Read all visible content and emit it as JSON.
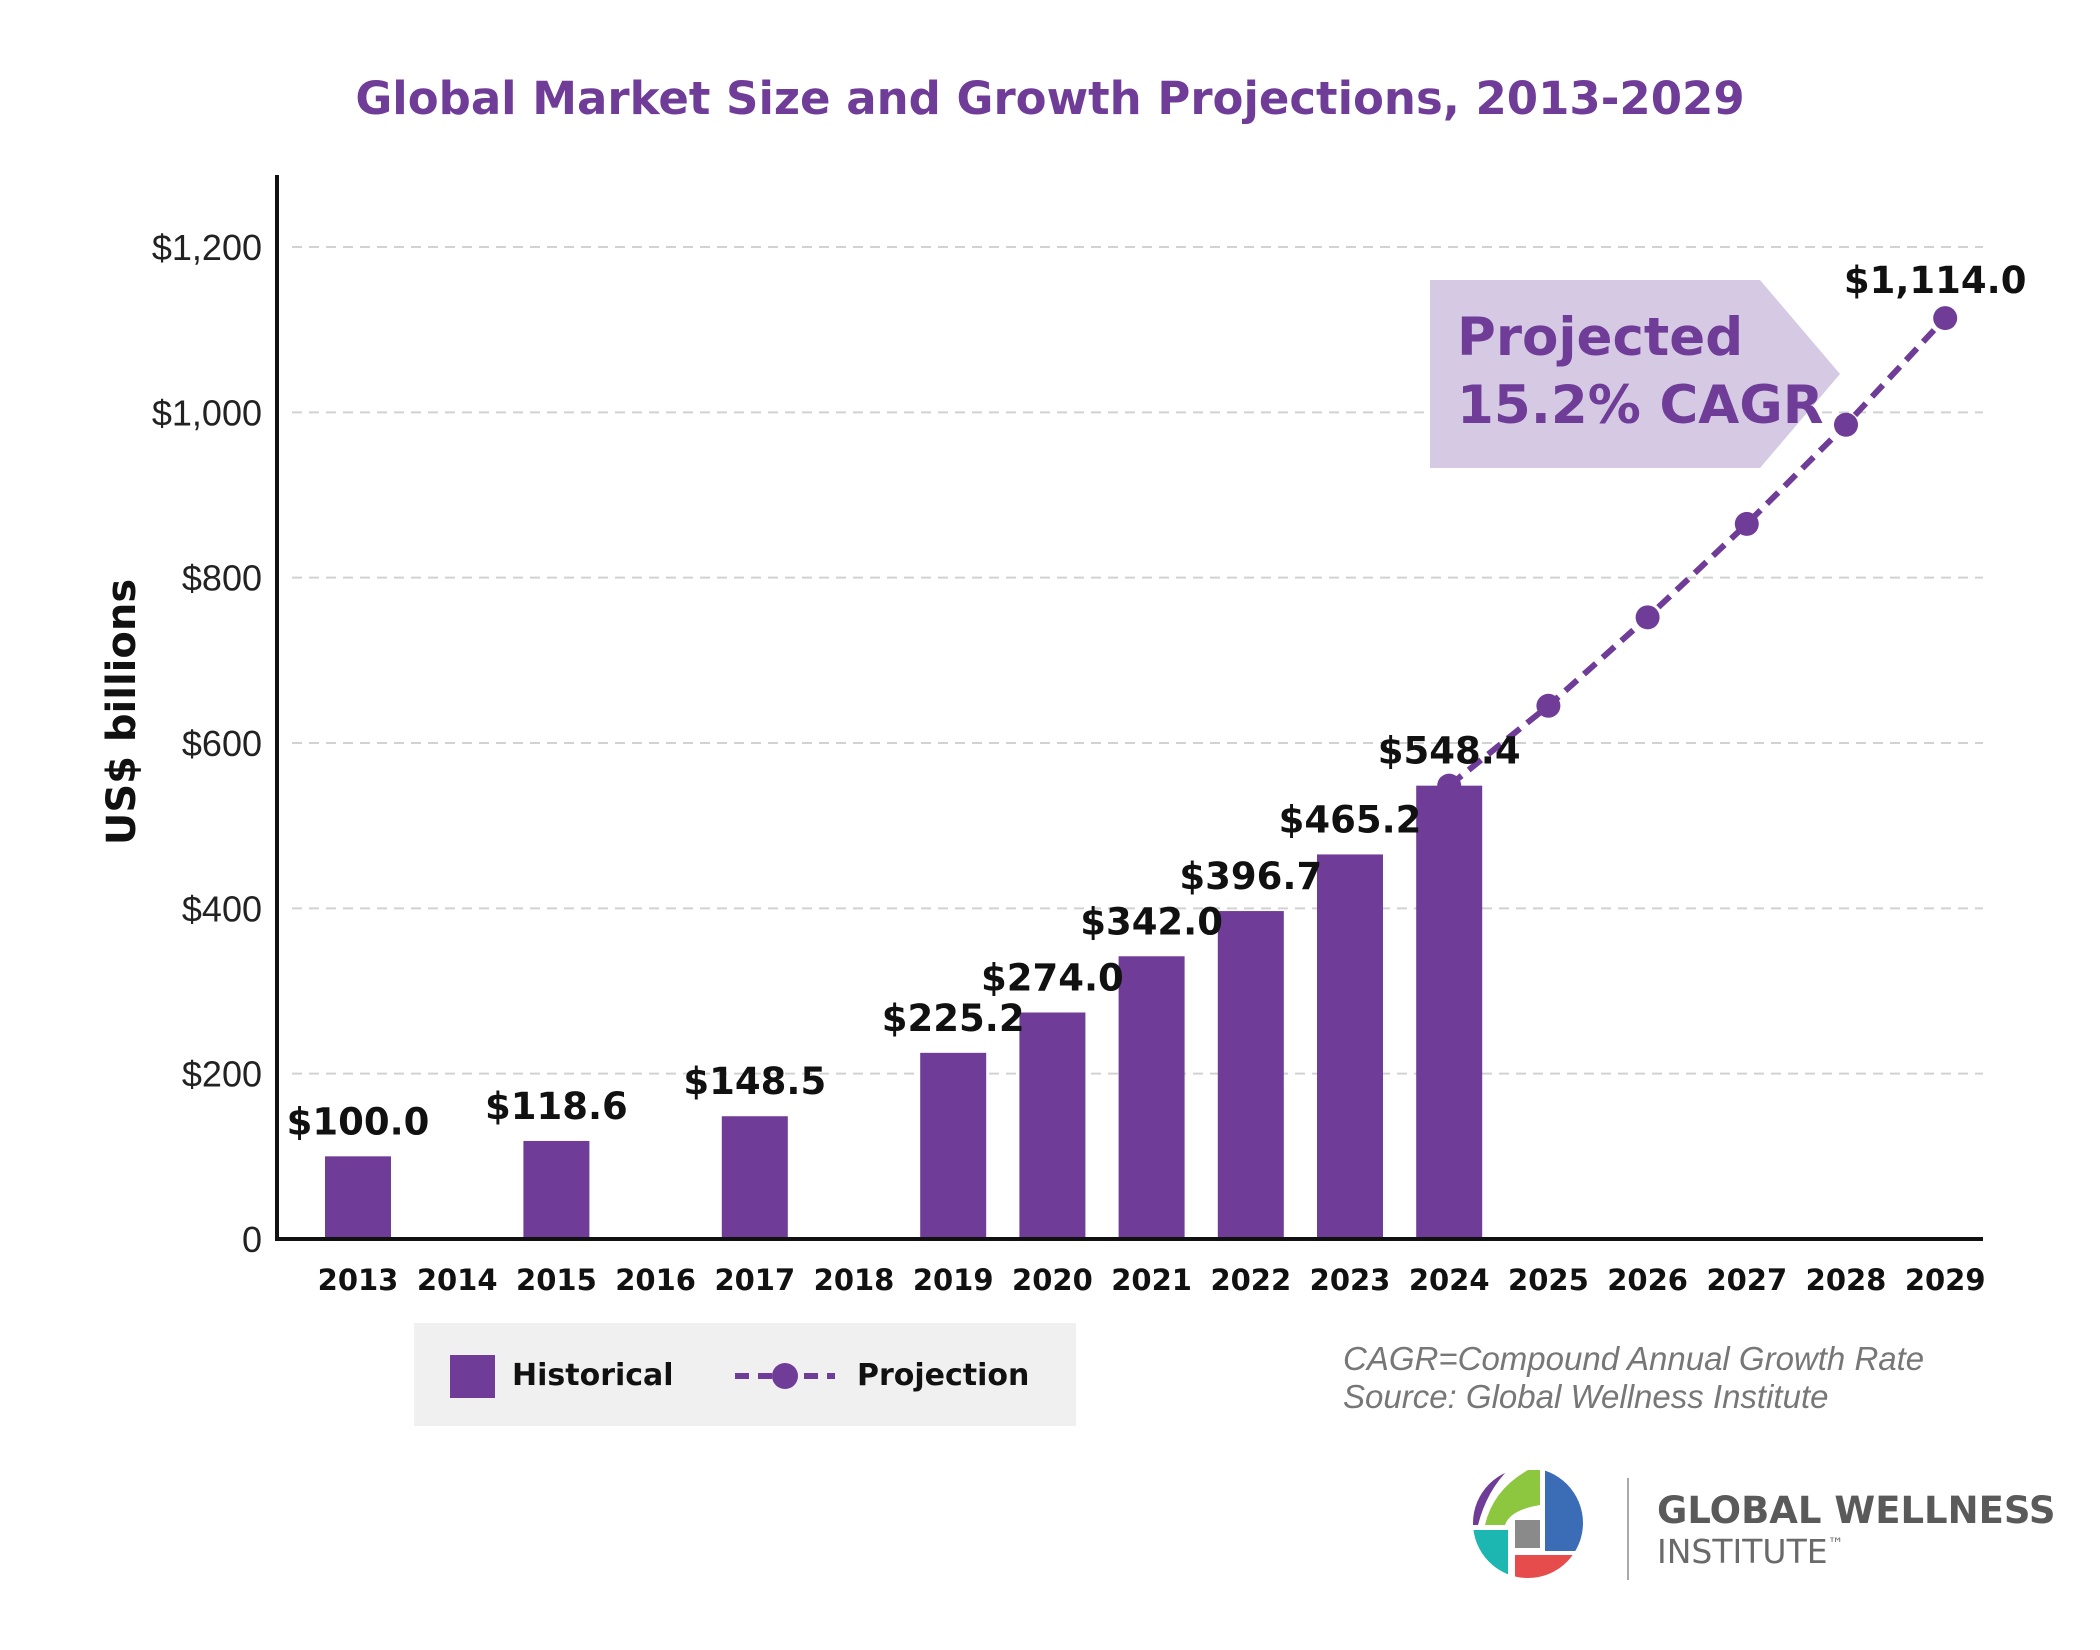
{
  "chart_data": {
    "type": "bar",
    "title": "Global Market Size and Growth Projections, 2013-2029",
    "ylabel": "US$ billions",
    "xlabel": "",
    "ylim": [
      0,
      1200
    ],
    "grid": true,
    "yticks": [
      {
        "value": 0,
        "label": "0"
      },
      {
        "value": 200,
        "label": "$200"
      },
      {
        "value": 400,
        "label": "$400"
      },
      {
        "value": 600,
        "label": "$600"
      },
      {
        "value": 800,
        "label": "$800"
      },
      {
        "value": 1000,
        "label": "$1,000"
      },
      {
        "value": 1200,
        "label": "$1,200"
      }
    ],
    "categories": [
      "2013",
      "2014",
      "2015",
      "2016",
      "2017",
      "2018",
      "2019",
      "2020",
      "2021",
      "2022",
      "2023",
      "2024",
      "2025",
      "2026",
      "2027",
      "2028",
      "2029"
    ],
    "series": [
      {
        "name": "Historical",
        "type": "bar",
        "color": "#6f3c98",
        "points": [
          {
            "x": "2013",
            "y": 100.0,
            "label": "$100.0"
          },
          {
            "x": "2015",
            "y": 118.6,
            "label": "$118.6"
          },
          {
            "x": "2017",
            "y": 148.5,
            "label": "$148.5"
          },
          {
            "x": "2019",
            "y": 225.2,
            "label": "$225.2"
          },
          {
            "x": "2020",
            "y": 274.0,
            "label": "$274.0"
          },
          {
            "x": "2021",
            "y": 342.0,
            "label": "$342.0"
          },
          {
            "x": "2022",
            "y": 396.7,
            "label": "$396.7"
          },
          {
            "x": "2023",
            "y": 465.2,
            "label": "$465.2"
          },
          {
            "x": "2024",
            "y": 548.4,
            "label": "$548.4"
          }
        ]
      },
      {
        "name": "Projection",
        "type": "line",
        "style": "dashed-with-markers",
        "color": "#6f3c98",
        "points": [
          {
            "x": "2024",
            "y": 548.4,
            "label": ""
          },
          {
            "x": "2025",
            "y": 645,
            "label": ""
          },
          {
            "x": "2026",
            "y": 752,
            "label": ""
          },
          {
            "x": "2027",
            "y": 865,
            "label": ""
          },
          {
            "x": "2028",
            "y": 985,
            "label": ""
          },
          {
            "x": "2029",
            "y": 1114.0,
            "label": "$1,114.0"
          }
        ]
      }
    ],
    "annotations": [
      {
        "text_lines": [
          "Projected",
          "15.2% CAGR"
        ],
        "shape": "arrow-callout",
        "fill": "#d5c9e3",
        "color": "#6f3c98"
      }
    ],
    "legend": {
      "placement": "bottom-left",
      "background": "#f0f0f1"
    }
  },
  "footnote": {
    "line1": "CAGR=Compound Annual Growth Rate",
    "line2": "Source: Global Wellness Institute"
  },
  "logo": {
    "name_line1": "GLOBAL WELLNESS",
    "name_line2": "INSTITUTE",
    "mark": "™"
  },
  "colors": {
    "accent": "#6f3c98",
    "callout_fill": "#d5c9e3",
    "grid": "#d2d2d2",
    "legend_bg": "#f0f0f1"
  }
}
